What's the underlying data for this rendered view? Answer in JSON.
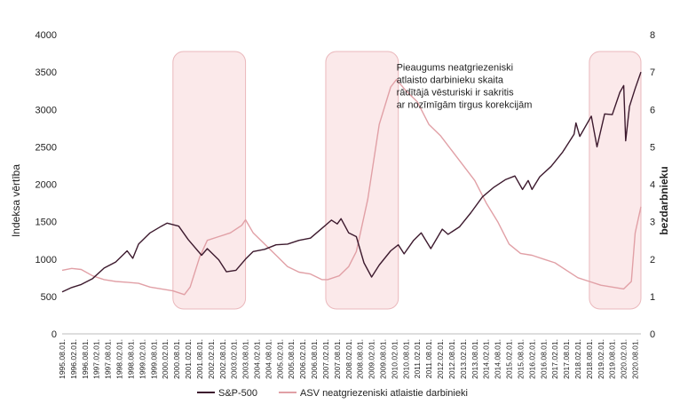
{
  "chart_data": {
    "type": "line",
    "title": "",
    "ylabel": "Indeksa vērtība",
    "y2label": "bezdarbnieku",
    "ylim": [
      0,
      4000
    ],
    "y2lim": [
      0,
      8
    ],
    "yticks": [
      0,
      500,
      1000,
      1500,
      2000,
      2500,
      3000,
      3500,
      4000
    ],
    "y2ticks": [
      0,
      1,
      2,
      3,
      4,
      5,
      6,
      7,
      8
    ],
    "grid": false,
    "legend_position": "bottom",
    "x_tick_labels": [
      "1995.08.01.",
      "1996.02.01.",
      "1996.08.01.",
      "1997.02.01.",
      "1997.08.01.",
      "1998.02.01.",
      "1998.08.01.",
      "1999.02.01.",
      "1999.08.01.",
      "2000.02.01.",
      "2000.08.01.",
      "2001.02.01.",
      "2001.08.01.",
      "2002.02.01.",
      "2002.08.01.",
      "2003.02.01.",
      "2003.08.01.",
      "2004.02.01.",
      "2004.08.01.",
      "2005.02.01.",
      "2005.08.01.",
      "2006.02.01.",
      "2006.08.01.",
      "2007.02.01.",
      "2007.08.01.",
      "2008.02.01.",
      "2008.08.01.",
      "2009.02.01.",
      "2009.08.01.",
      "2010.02.01.",
      "2010.08.01.",
      "2011.02.01.",
      "2011.08.01.",
      "2012.02.01.",
      "2012.08.01.",
      "2013.02.01.",
      "2013.08.01.",
      "2014.02.01.",
      "2014.08.01.",
      "2015.02.01.",
      "2015.08.01.",
      "2016.02.01.",
      "2016.08.01.",
      "2017.02.01.",
      "2017.08.01.",
      "2018.02.01.",
      "2018.08.01.",
      "2019.02.01.",
      "2019.08.01.",
      "2020.02.01.",
      "2020.08.01."
    ],
    "x_range": [
      "1995.08.01.",
      "2020.11.01."
    ],
    "series": [
      {
        "name": "S&P-500",
        "axis": "left",
        "color": "#3d1a2e",
        "points": [
          [
            "1995.08.01.",
            560
          ],
          [
            "1996.01.01.",
            620
          ],
          [
            "1996.06.01.",
            660
          ],
          [
            "1996.12.01.",
            740
          ],
          [
            "1997.06.01.",
            880
          ],
          [
            "1997.12.01.",
            960
          ],
          [
            "1998.06.01.",
            1110
          ],
          [
            "1998.09.01.",
            1010
          ],
          [
            "1998.12.01.",
            1200
          ],
          [
            "1999.06.01.",
            1350
          ],
          [
            "1999.12.01.",
            1440
          ],
          [
            "2000.03.01.",
            1480
          ],
          [
            "2000.09.01.",
            1440
          ],
          [
            "2001.02.01.",
            1260
          ],
          [
            "2001.09.01.",
            1050
          ],
          [
            "2001.12.01.",
            1140
          ],
          [
            "2002.06.01.",
            990
          ],
          [
            "2002.10.01.",
            830
          ],
          [
            "2003.03.01.",
            850
          ],
          [
            "2003.08.01.",
            1000
          ],
          [
            "2003.12.01.",
            1100
          ],
          [
            "2004.06.01.",
            1130
          ],
          [
            "2004.12.01.",
            1190
          ],
          [
            "2005.06.01.",
            1200
          ],
          [
            "2005.12.01.",
            1250
          ],
          [
            "2006.06.01.",
            1280
          ],
          [
            "2006.12.01.",
            1410
          ],
          [
            "2007.05.01.",
            1520
          ],
          [
            "2007.08.01.",
            1470
          ],
          [
            "2007.10.01.",
            1540
          ],
          [
            "2008.02.01.",
            1350
          ],
          [
            "2008.06.01.",
            1300
          ],
          [
            "2008.10.01.",
            950
          ],
          [
            "2009.02.01.",
            760
          ],
          [
            "2009.06.01.",
            920
          ],
          [
            "2009.12.01.",
            1110
          ],
          [
            "2010.04.01.",
            1190
          ],
          [
            "2010.07.01.",
            1070
          ],
          [
            "2010.12.01.",
            1250
          ],
          [
            "2011.04.01.",
            1350
          ],
          [
            "2011.09.01.",
            1140
          ],
          [
            "2012.03.01.",
            1400
          ],
          [
            "2012.06.01.",
            1330
          ],
          [
            "2012.12.01.",
            1430
          ],
          [
            "2013.06.01.",
            1620
          ],
          [
            "2013.12.01.",
            1830
          ],
          [
            "2014.06.01.",
            1960
          ],
          [
            "2014.12.01.",
            2060
          ],
          [
            "2015.05.01.",
            2110
          ],
          [
            "2015.09.01.",
            1930
          ],
          [
            "2015.12.01.",
            2050
          ],
          [
            "2016.02.01.",
            1930
          ],
          [
            "2016.06.01.",
            2100
          ],
          [
            "2016.12.01.",
            2240
          ],
          [
            "2017.06.01.",
            2430
          ],
          [
            "2017.12.01.",
            2670
          ],
          [
            "2018.01.01.",
            2820
          ],
          [
            "2018.03.01.",
            2640
          ],
          [
            "2018.09.01.",
            2910
          ],
          [
            "2018.12.01.",
            2500
          ],
          [
            "2019.04.01.",
            2940
          ],
          [
            "2019.08.01.",
            2930
          ],
          [
            "2019.12.01.",
            3230
          ],
          [
            "2020.02.01.",
            3320
          ],
          [
            "2020.03.01.",
            2580
          ],
          [
            "2020.05.01.",
            3040
          ],
          [
            "2020.08.01.",
            3280
          ],
          [
            "2020.11.01.",
            3500
          ]
        ]
      },
      {
        "name": "ASV neatgriezeniski atlaistie darbinieki",
        "axis": "right",
        "color": "#e1a0a6",
        "points": [
          [
            "1995.08.01.",
            1.7
          ],
          [
            "1996.01.01.",
            1.75
          ],
          [
            "1996.06.01.",
            1.72
          ],
          [
            "1996.12.01.",
            1.55
          ],
          [
            "1997.06.01.",
            1.45
          ],
          [
            "1997.12.01.",
            1.4
          ],
          [
            "1998.06.01.",
            1.38
          ],
          [
            "1998.12.01.",
            1.35
          ],
          [
            "1999.06.01.",
            1.25
          ],
          [
            "1999.12.01.",
            1.2
          ],
          [
            "2000.06.01.",
            1.15
          ],
          [
            "2000.12.01.",
            1.05
          ],
          [
            "2001.03.01.",
            1.25
          ],
          [
            "2001.08.01.",
            2.05
          ],
          [
            "2001.12.01.",
            2.5
          ],
          [
            "2002.06.01.",
            2.6
          ],
          [
            "2002.12.01.",
            2.7
          ],
          [
            "2003.06.01.",
            2.9
          ],
          [
            "2003.08.01.",
            3.05
          ],
          [
            "2003.12.01.",
            2.7
          ],
          [
            "2004.06.01.",
            2.4
          ],
          [
            "2004.12.01.",
            2.1
          ],
          [
            "2005.06.01.",
            1.8
          ],
          [
            "2005.12.01.",
            1.65
          ],
          [
            "2006.06.01.",
            1.6
          ],
          [
            "2006.12.01.",
            1.45
          ],
          [
            "2007.03.01.",
            1.45
          ],
          [
            "2007.09.01.",
            1.55
          ],
          [
            "2008.02.01.",
            1.8
          ],
          [
            "2008.06.01.",
            2.2
          ],
          [
            "2008.12.01.",
            3.6
          ],
          [
            "2009.06.01.",
            5.6
          ],
          [
            "2009.12.01.",
            6.6
          ],
          [
            "2010.03.01.",
            6.8
          ],
          [
            "2010.08.01.",
            6.5
          ],
          [
            "2011.02.01.",
            6.2
          ],
          [
            "2011.08.01.",
            5.6
          ],
          [
            "2012.02.01.",
            5.3
          ],
          [
            "2012.08.01.",
            4.9
          ],
          [
            "2013.02.01.",
            4.5
          ],
          [
            "2013.08.01.",
            4.1
          ],
          [
            "2014.02.01.",
            3.5
          ],
          [
            "2014.08.01.",
            3.0
          ],
          [
            "2015.02.01.",
            2.4
          ],
          [
            "2015.08.01.",
            2.15
          ],
          [
            "2016.02.01.",
            2.1
          ],
          [
            "2016.08.01.",
            2.0
          ],
          [
            "2017.02.01.",
            1.9
          ],
          [
            "2017.08.01.",
            1.7
          ],
          [
            "2018.02.01.",
            1.5
          ],
          [
            "2018.08.01.",
            1.4
          ],
          [
            "2019.02.01.",
            1.3
          ],
          [
            "2019.08.01.",
            1.25
          ],
          [
            "2020.02.01.",
            1.2
          ],
          [
            "2020.06.01.",
            1.4
          ],
          [
            "2020.08.01.",
            2.7
          ],
          [
            "2020.11.01.",
            3.4
          ]
        ]
      }
    ],
    "shaded_periods": [
      {
        "start": "2000.06.01.",
        "end": "2003.08.01.",
        "color": "#fbe9ea"
      },
      {
        "start": "2007.02.01.",
        "end": "2010.04.01.",
        "color": "#fbe9ea"
      },
      {
        "start": "2018.08.01.",
        "end": "2020.11.01.",
        "color": "#fbe9ea"
      }
    ],
    "annotation": {
      "lines": [
        "Pieaugums neatgriezeniski",
        "atlaisto darbinieku skaita",
        "rādītājā vēsturiski ir sakritis",
        " ar nozīmīgām tirgus korekcijām"
      ],
      "anchor": {
        "x": "2010.03.01.",
        "y": 3520
      }
    }
  }
}
